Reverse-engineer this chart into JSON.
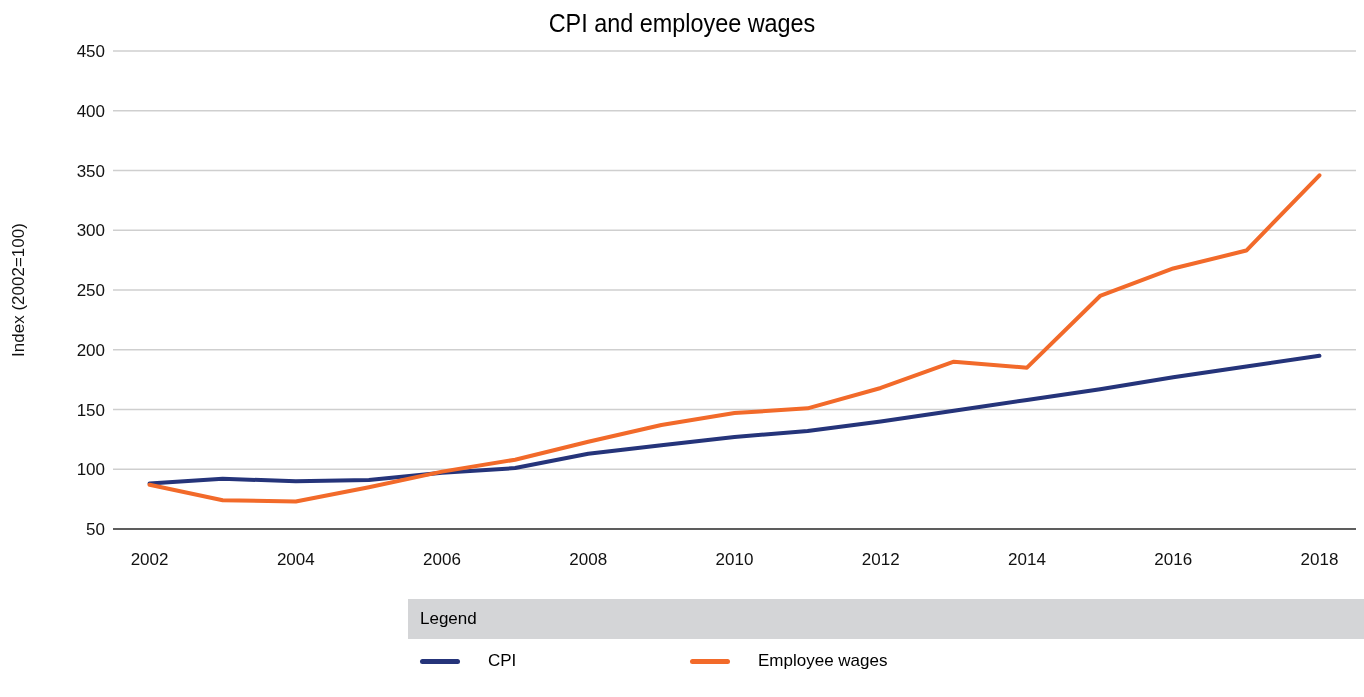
{
  "chart_data": {
    "type": "line",
    "title": "CPI and employee wages",
    "ylabel": "Index (2002=100)",
    "legend_title": "Legend",
    "legend": "bottom",
    "grid": "y",
    "marker": "none",
    "line_style": "solid",
    "categories": [
      "2002",
      null,
      "2004",
      null,
      "2006",
      null,
      "2008",
      null,
      "2010",
      null,
      "2012",
      null,
      "2014",
      null,
      "2016",
      null,
      "2018"
    ],
    "ylim": [
      50,
      450
    ],
    "yticks": [
      50,
      100,
      150,
      200,
      250,
      300,
      350,
      400,
      450
    ],
    "series": [
      {
        "name": "CPI",
        "color": "#25347a",
        "values": [
          88,
          92,
          90,
          91,
          97,
          101,
          113,
          120,
          127,
          132,
          140,
          149,
          158,
          167,
          177,
          186,
          195
        ]
      },
      {
        "name": "Employee wages",
        "color": "#f26a2a",
        "values": [
          87,
          74,
          73,
          85,
          98,
          108,
          123,
          137,
          147,
          151,
          168,
          190,
          185,
          245,
          268,
          283,
          346
        ]
      }
    ]
  }
}
